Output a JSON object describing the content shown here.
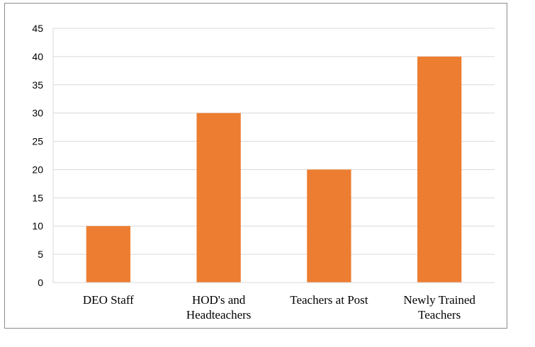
{
  "chart_data": {
    "type": "bar",
    "title": "",
    "xlabel": "",
    "ylabel": "",
    "categories": [
      [
        "DEO Staff"
      ],
      [
        "HOD's and",
        "Headteachers"
      ],
      [
        "Teachers at Post"
      ],
      [
        "Newly Trained",
        "Teachers"
      ]
    ],
    "values": [
      10,
      30,
      20,
      40
    ],
    "ylim": [
      0,
      45
    ],
    "yticks": [
      0,
      5,
      10,
      15,
      20,
      25,
      30,
      35,
      40,
      45
    ],
    "grid": true,
    "legend": "none",
    "bar_color": "#ED7D31",
    "grid_color": "#D9D9D9"
  }
}
